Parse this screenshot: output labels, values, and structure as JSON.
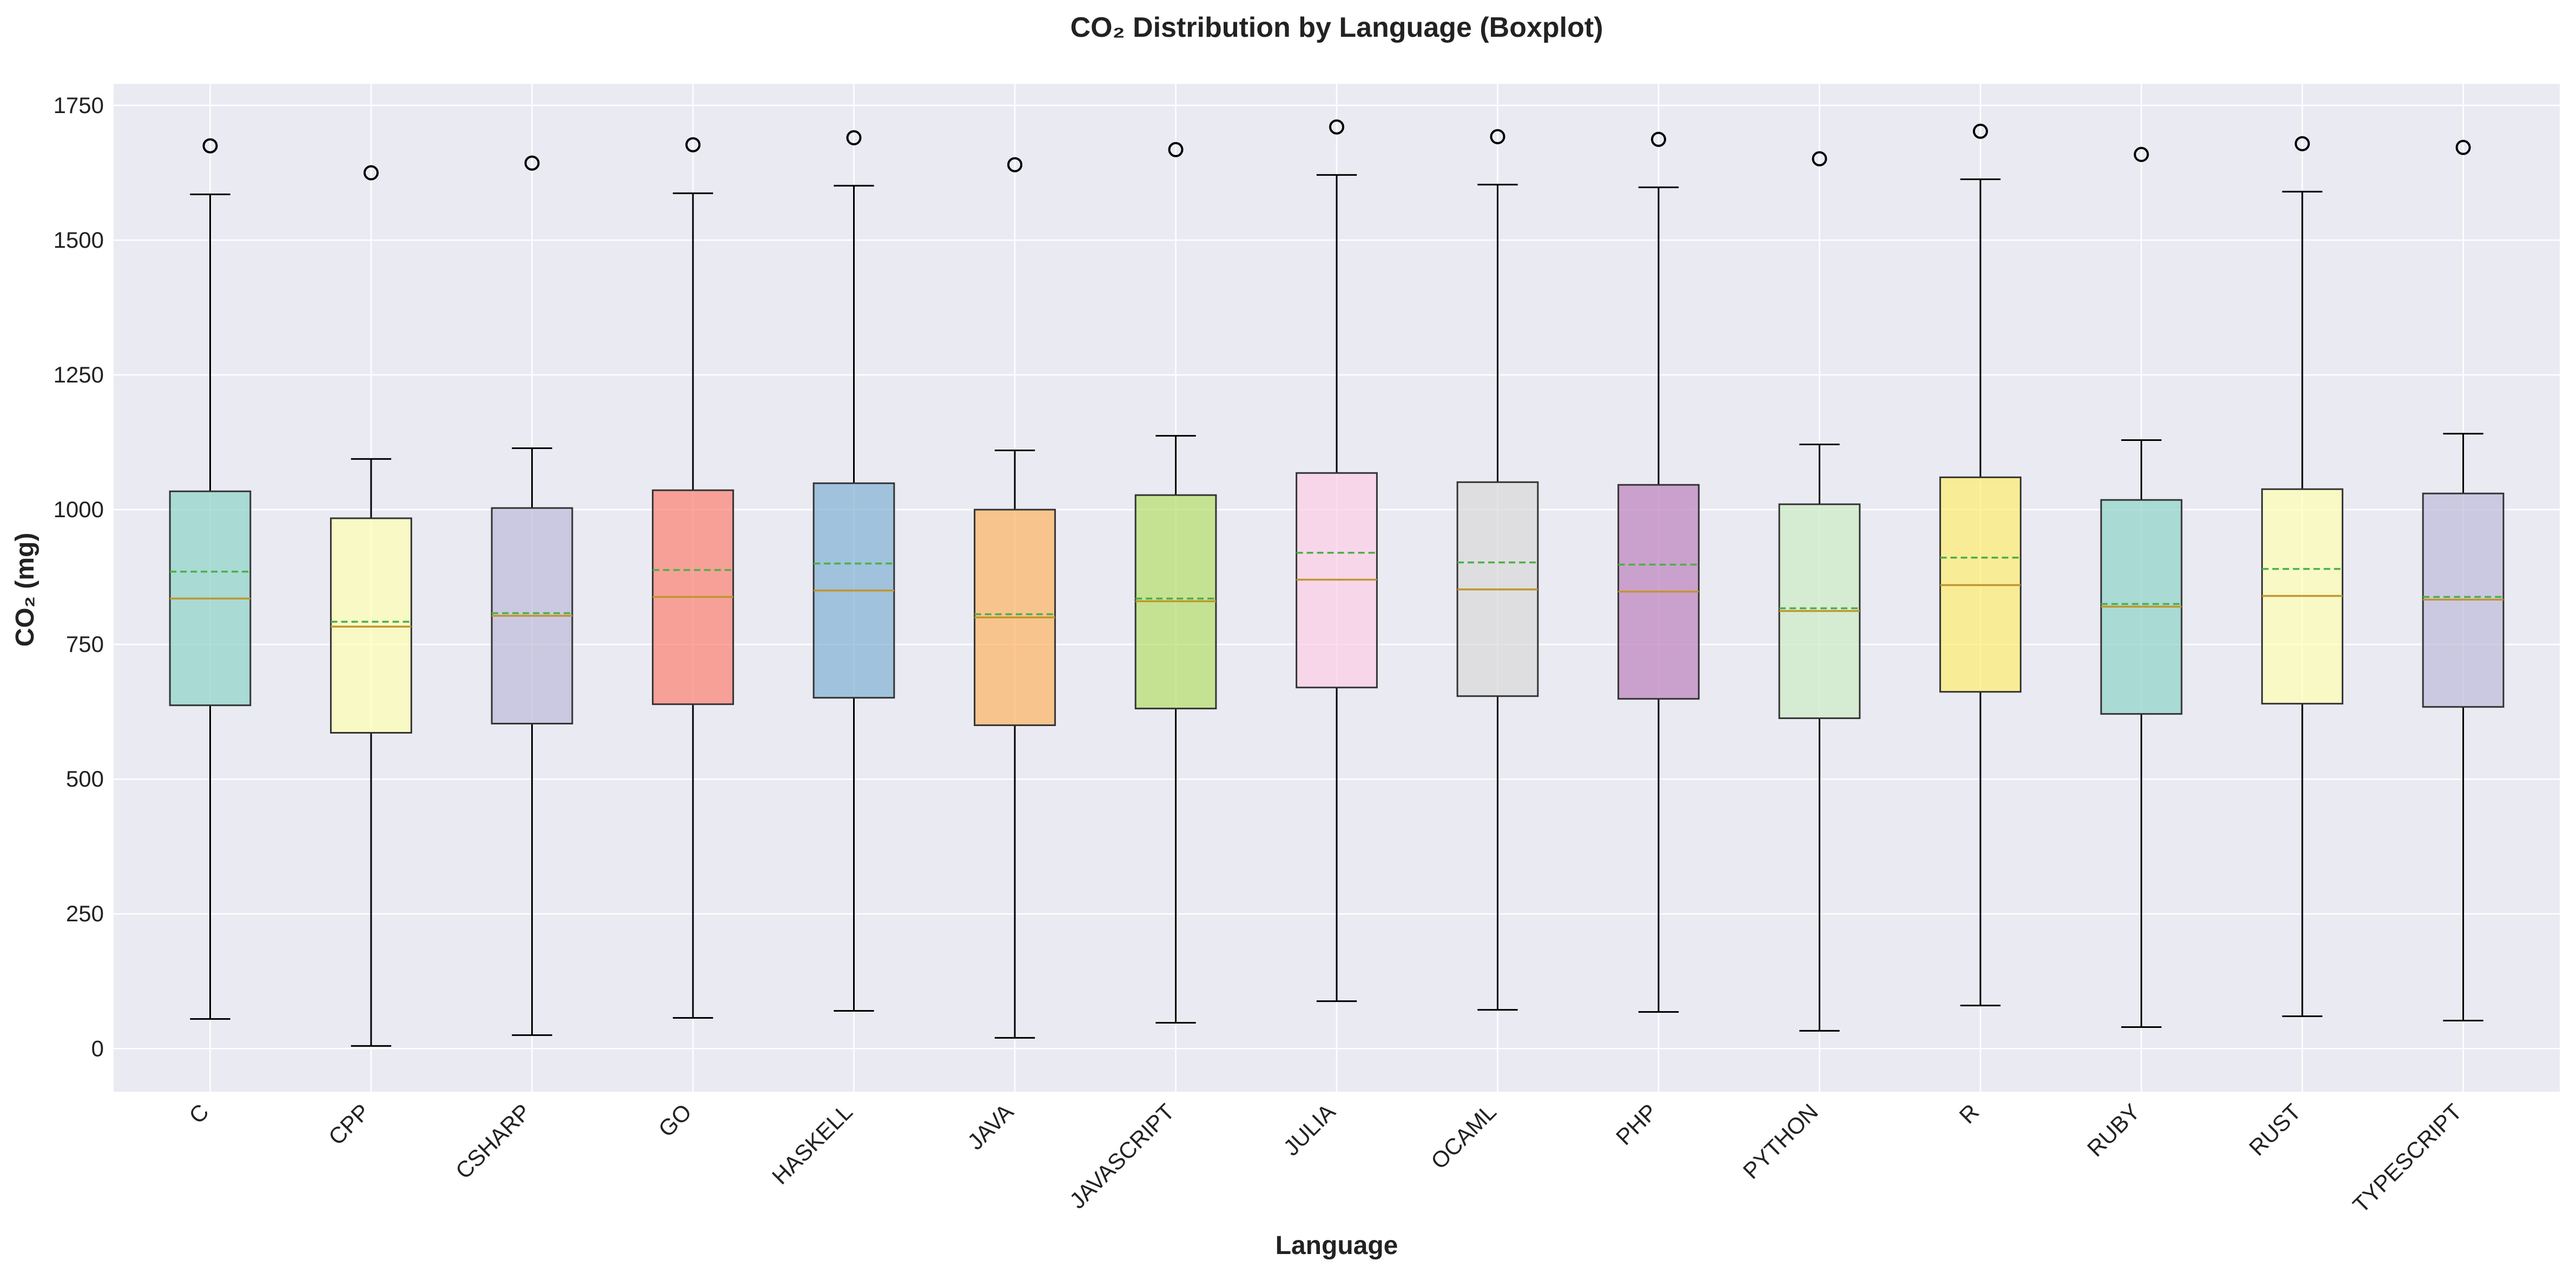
{
  "chart_data": {
    "type": "boxplot",
    "title": "CO₂ Distribution by Language (Boxplot)",
    "xlabel": "Language",
    "ylabel": "CO₂ (mg)",
    "ylim": [
      -80,
      1790
    ],
    "yticks": [
      0,
      250,
      500,
      750,
      1000,
      1250,
      1500,
      1750
    ],
    "ytick_labels": [
      "0",
      "250",
      "500",
      "750",
      "1000",
      "1250",
      "1500",
      "1750"
    ],
    "grid": true,
    "legend": "none",
    "categories": [
      "C",
      "CPP",
      "CSHARP",
      "GO",
      "HASKELL",
      "JAVA",
      "JAVASCRIPT",
      "JULIA",
      "OCAML",
      "PHP",
      "PYTHON",
      "R",
      "RUBY",
      "RUST",
      "TYPESCRIPT"
    ],
    "boxes": [
      {
        "label": "C",
        "whisker_low": 55,
        "q1": 637,
        "median": 835,
        "mean": 885,
        "q3": 1034,
        "whisker_high": 1585,
        "outliers": [
          1675
        ],
        "color": "#8dd3c7"
      },
      {
        "label": "CPP",
        "whisker_low": 5,
        "q1": 586,
        "median": 783,
        "mean": 792,
        "q3": 984,
        "whisker_high": 1094,
        "outliers": [
          1625
        ],
        "color": "#ffffb3"
      },
      {
        "label": "CSHARP",
        "whisker_low": 25,
        "q1": 603,
        "median": 803,
        "mean": 808,
        "q3": 1003,
        "whisker_high": 1114,
        "outliers": [
          1643
        ],
        "color": "#bebada"
      },
      {
        "label": "GO",
        "whisker_low": 57,
        "q1": 639,
        "median": 838,
        "mean": 888,
        "q3": 1036,
        "whisker_high": 1587,
        "outliers": [
          1677
        ],
        "color": "#fb8072"
      },
      {
        "label": "HASKELL",
        "whisker_low": 70,
        "q1": 651,
        "median": 850,
        "mean": 900,
        "q3": 1049,
        "whisker_high": 1601,
        "outliers": [
          1690
        ],
        "color": "#80b1d3"
      },
      {
        "label": "JAVA",
        "whisker_low": 20,
        "q1": 600,
        "median": 800,
        "mean": 806,
        "q3": 1000,
        "whisker_high": 1110,
        "outliers": [
          1640
        ],
        "color": "#fdb462"
      },
      {
        "label": "JAVASCRIPT",
        "whisker_low": 48,
        "q1": 631,
        "median": 830,
        "mean": 835,
        "q3": 1027,
        "whisker_high": 1137,
        "outliers": [
          1668
        ],
        "color": "#b3de69"
      },
      {
        "label": "JULIA",
        "whisker_low": 88,
        "q1": 670,
        "median": 870,
        "mean": 920,
        "q3": 1068,
        "whisker_high": 1621,
        "outliers": [
          1710
        ],
        "color": "#fccde5"
      },
      {
        "label": "OCAML",
        "whisker_low": 72,
        "q1": 654,
        "median": 852,
        "mean": 902,
        "q3": 1051,
        "whisker_high": 1603,
        "outliers": [
          1692
        ],
        "color": "#d9d9d9"
      },
      {
        "label": "PHP",
        "whisker_low": 68,
        "q1": 649,
        "median": 848,
        "mean": 898,
        "q3": 1046,
        "whisker_high": 1598,
        "outliers": [
          1687
        ],
        "color": "#bc80bd"
      },
      {
        "label": "PYTHON",
        "whisker_low": 33,
        "q1": 613,
        "median": 812,
        "mean": 817,
        "q3": 1010,
        "whisker_high": 1121,
        "outliers": [
          1651
        ],
        "color": "#ccebc5"
      },
      {
        "label": "R",
        "whisker_low": 80,
        "q1": 662,
        "median": 860,
        "mean": 911,
        "q3": 1060,
        "whisker_high": 1613,
        "outliers": [
          1702
        ],
        "color": "#ffed6f"
      },
      {
        "label": "RUBY",
        "whisker_low": 40,
        "q1": 621,
        "median": 820,
        "mean": 825,
        "q3": 1018,
        "whisker_high": 1129,
        "outliers": [
          1659
        ],
        "color": "#8dd3c7"
      },
      {
        "label": "RUST",
        "whisker_low": 60,
        "q1": 640,
        "median": 840,
        "mean": 890,
        "q3": 1038,
        "whisker_high": 1590,
        "outliers": [
          1679
        ],
        "color": "#ffffb3"
      },
      {
        "label": "TYPESCRIPT",
        "whisker_low": 52,
        "q1": 634,
        "median": 833,
        "mean": 838,
        "q3": 1030,
        "whisker_high": 1141,
        "outliers": [
          1672
        ],
        "color": "#bebada"
      }
    ],
    "median_color": "#c0962e",
    "mean_color": "#4daf4a",
    "plot_background": "#eaeaf2",
    "grid_color": "#ffffff"
  }
}
